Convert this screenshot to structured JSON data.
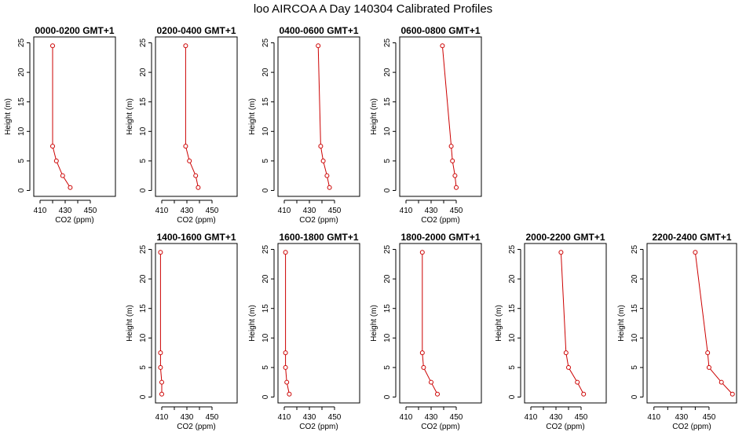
{
  "page_title": "loo AIRCOA A  Day 140304  Calibrated Profiles",
  "chart_data": [
    {
      "type": "line",
      "title": "0000-0200 GMT+1",
      "xlabel": "CO2 (ppm)",
      "ylabel": "Height (m)",
      "xlim": [
        405,
        470
      ],
      "ylim": [
        -1,
        26
      ],
      "xticks": [
        410,
        430,
        450
      ],
      "yticks": [
        0,
        5,
        10,
        15,
        20,
        25
      ],
      "x": [
        434,
        428,
        423,
        420,
        420
      ],
      "y": [
        0.5,
        2.5,
        5,
        7.5,
        24.5
      ]
    },
    {
      "type": "line",
      "title": "0200-0400 GMT+1",
      "xlabel": "CO2 (ppm)",
      "ylabel": "Height (m)",
      "xlim": [
        405,
        470
      ],
      "ylim": [
        -1,
        26
      ],
      "xticks": [
        410,
        430,
        450
      ],
      "yticks": [
        0,
        5,
        10,
        15,
        20,
        25
      ],
      "x": [
        439,
        437,
        432,
        429,
        429
      ],
      "y": [
        0.5,
        2.5,
        5,
        7.5,
        24.5
      ]
    },
    {
      "type": "line",
      "title": "0400-0600 GMT+1",
      "xlabel": "CO2 (ppm)",
      "ylabel": "Height (m)",
      "xlim": [
        405,
        470
      ],
      "ylim": [
        -1,
        26
      ],
      "xticks": [
        410,
        430,
        450
      ],
      "yticks": [
        0,
        5,
        10,
        15,
        20,
        25
      ],
      "x": [
        446,
        444,
        441,
        439,
        437
      ],
      "y": [
        0.5,
        2.5,
        5,
        7.5,
        24.5
      ]
    },
    {
      "type": "line",
      "title": "0600-0800 GMT+1",
      "xlabel": "CO2 (ppm)",
      "ylabel": "Height (m)",
      "xlim": [
        405,
        470
      ],
      "ylim": [
        -1,
        26
      ],
      "xticks": [
        410,
        430,
        450
      ],
      "yticks": [
        0,
        5,
        10,
        15,
        20,
        25
      ],
      "x": [
        450,
        449,
        447,
        446,
        439
      ],
      "y": [
        0.5,
        2.5,
        5,
        7.5,
        24.5
      ]
    },
    {
      "type": "line",
      "title": "1400-1600 GMT+1",
      "xlabel": "CO2 (ppm)",
      "ylabel": "Height (m)",
      "xlim": [
        405,
        470
      ],
      "ylim": [
        -1,
        26
      ],
      "xticks": [
        410,
        430,
        450
      ],
      "yticks": [
        0,
        5,
        10,
        15,
        20,
        25
      ],
      "x": [
        410,
        410,
        409,
        409,
        409
      ],
      "y": [
        0.5,
        2.5,
        5,
        7.5,
        24.5
      ]
    },
    {
      "type": "line",
      "title": "1600-1800 GMT+1",
      "xlabel": "CO2 (ppm)",
      "ylabel": "Height (m)",
      "xlim": [
        405,
        470
      ],
      "ylim": [
        -1,
        26
      ],
      "xticks": [
        410,
        430,
        450
      ],
      "yticks": [
        0,
        5,
        10,
        15,
        20,
        25
      ],
      "x": [
        414,
        412,
        411,
        411,
        411
      ],
      "y": [
        0.5,
        2.5,
        5,
        7.5,
        24.5
      ]
    },
    {
      "type": "line",
      "title": "1800-2000 GMT+1",
      "xlabel": "CO2 (ppm)",
      "ylabel": "Height (m)",
      "xlim": [
        405,
        470
      ],
      "ylim": [
        -1,
        26
      ],
      "xticks": [
        410,
        430,
        450
      ],
      "yticks": [
        0,
        5,
        10,
        15,
        20,
        25
      ],
      "x": [
        435,
        430,
        424,
        423,
        423
      ],
      "y": [
        0.5,
        2.5,
        5,
        7.5,
        24.5
      ]
    },
    {
      "type": "line",
      "title": "2000-2200 GMT+1",
      "xlabel": "CO2 (ppm)",
      "ylabel": "Height (m)",
      "xlim": [
        405,
        470
      ],
      "ylim": [
        -1,
        26
      ],
      "xticks": [
        410,
        430,
        450
      ],
      "yticks": [
        0,
        5,
        10,
        15,
        20,
        25
      ],
      "x": [
        452,
        447,
        440,
        438,
        434
      ],
      "y": [
        0.5,
        2.5,
        5,
        7.5,
        24.5
      ]
    },
    {
      "type": "line",
      "title": "2200-2400 GMT+1",
      "xlabel": "CO2 (ppm)",
      "ylabel": "Height (m)",
      "xlim": [
        405,
        470
      ],
      "ylim": [
        -1,
        26
      ],
      "xticks": [
        410,
        430,
        450
      ],
      "yticks": [
        0,
        5,
        10,
        15,
        20,
        25
      ],
      "x": [
        467,
        459,
        450,
        449,
        440
      ],
      "y": [
        0.5,
        2.5,
        5,
        7.5,
        24.5
      ]
    }
  ],
  "colors": {
    "series": "#cc0000",
    "axis": "#000000"
  }
}
